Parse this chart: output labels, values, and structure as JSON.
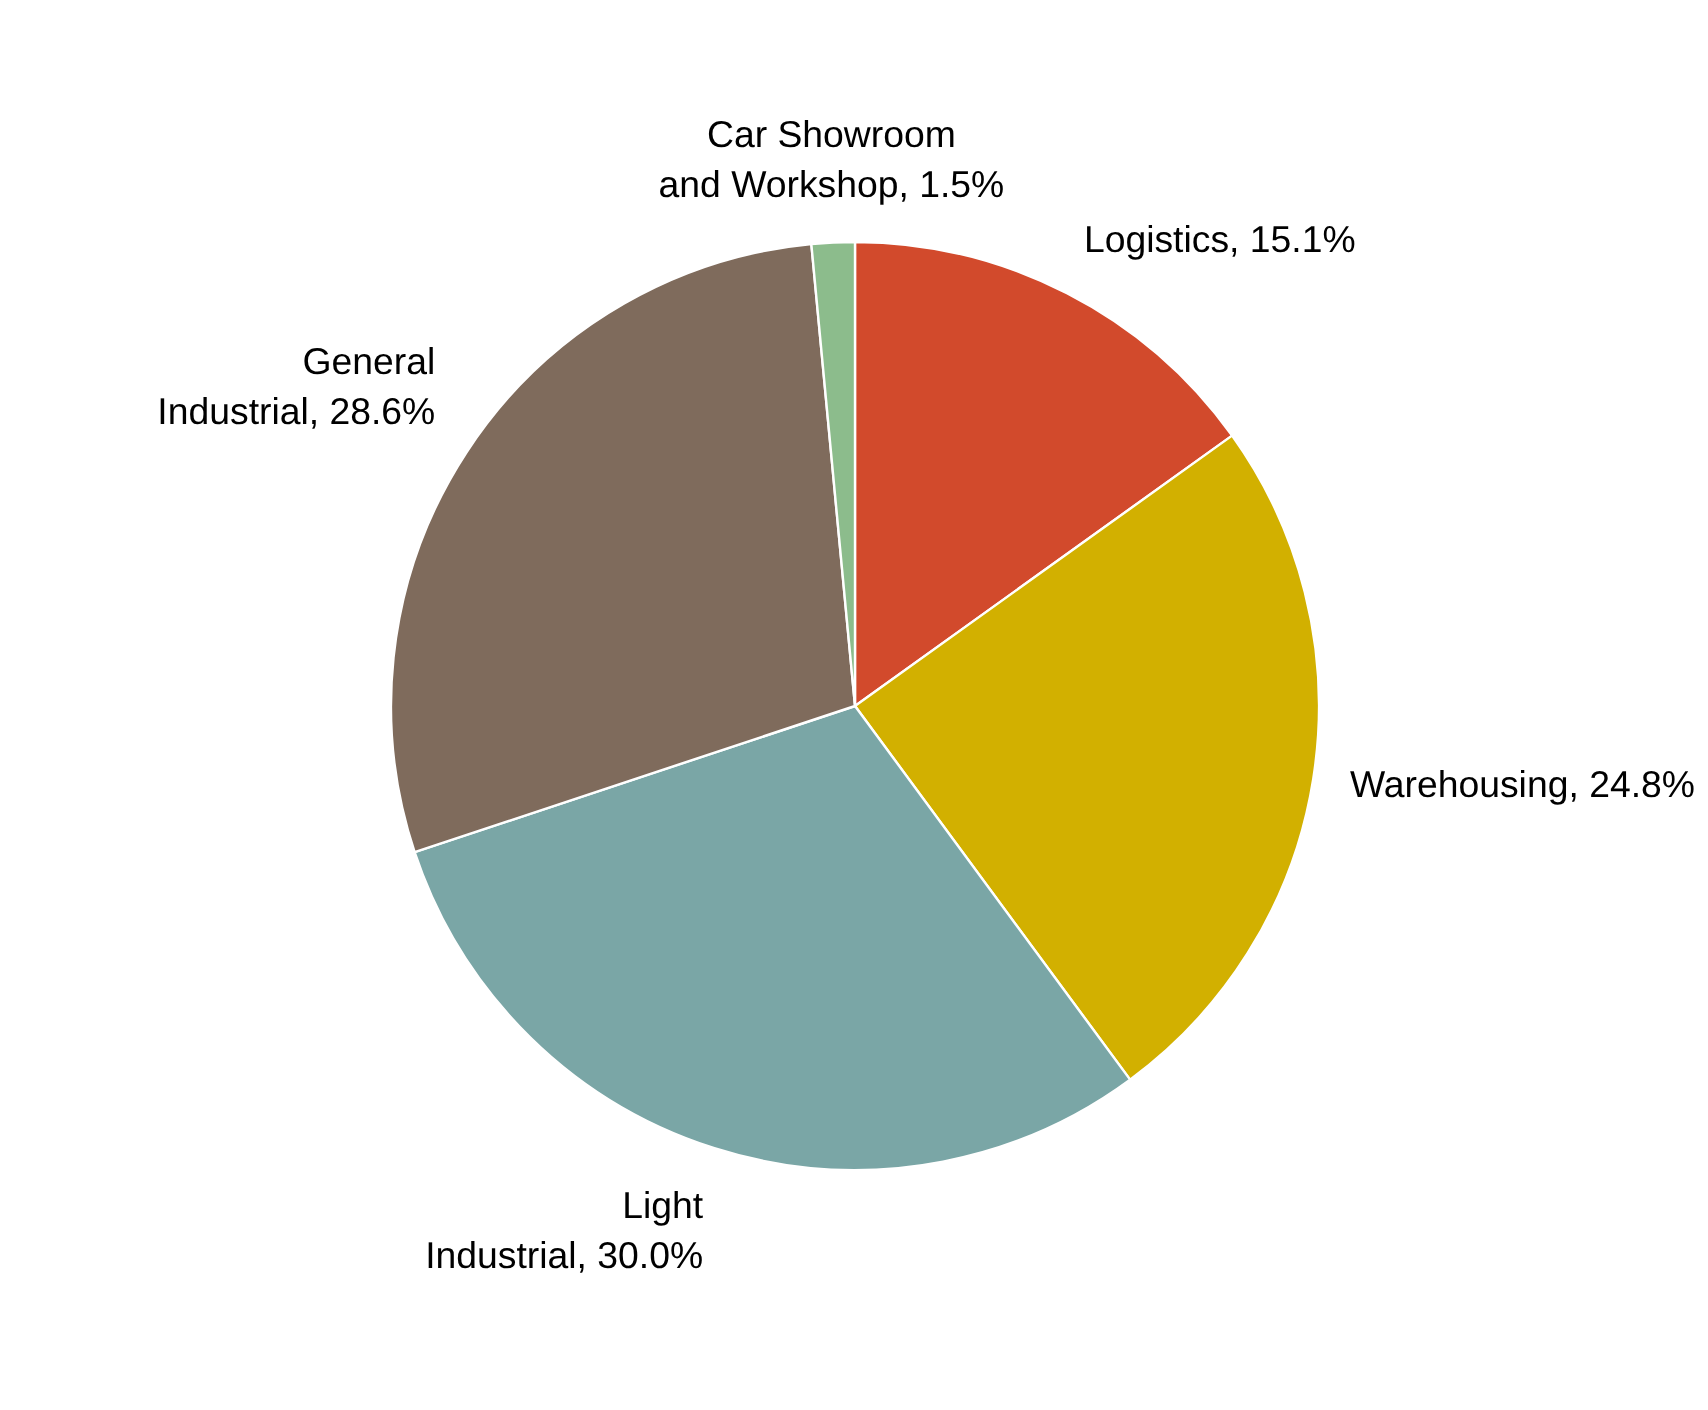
{
  "chart_data": {
    "type": "pie",
    "categories": [
      "Logistics",
      "Warehousing",
      "Light Industrial",
      "General Industrial",
      "Car Showroom and Workshop"
    ],
    "values": [
      15.1,
      24.8,
      30.0,
      28.6,
      1.5
    ],
    "value_labels": [
      "15.1%",
      "24.8%",
      "30.0%",
      "28.6%",
      "1.5%"
    ],
    "colors": [
      "#d24a2c",
      "#d2b000",
      "#7aa6a6",
      "#7f6b5c",
      "#8cbc8c"
    ]
  }
}
